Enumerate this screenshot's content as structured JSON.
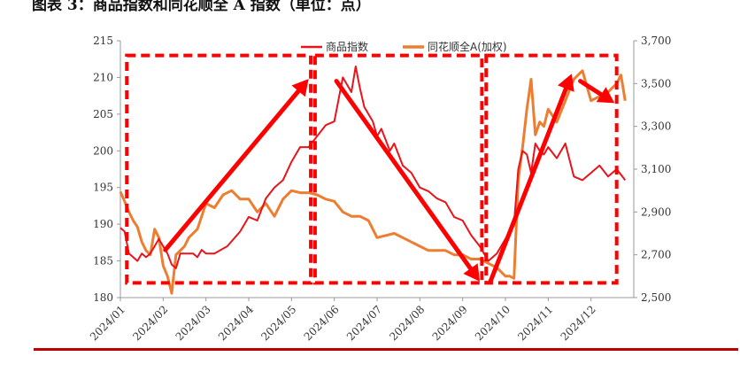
{
  "title": "图表 3：商品指数和同花顺全 A 指数（单位：点）",
  "colors": {
    "commodity": "#e8141c",
    "tonghuashun": "#ed7d31",
    "annotation": "#ff0000",
    "rule": "#c00000"
  },
  "chart_data": {
    "type": "line",
    "title": "图表 3：商品指数和同花顺全 A 指数（单位：点）",
    "x_tick_labels": [
      "2024/01",
      "2024/02",
      "2024/03",
      "2024/04",
      "2024/05",
      "2024/06",
      "2024/07",
      "2024/08",
      "2024/09",
      "2024/10",
      "2024/11",
      "2024/12"
    ],
    "x_range": [
      0,
      12
    ],
    "y_left": {
      "ticks": [
        "180",
        "185",
        "190",
        "195",
        "200",
        "205",
        "210",
        "215"
      ],
      "range": [
        180,
        215
      ]
    },
    "y_right": {
      "ticks": [
        "2,500",
        "2,700",
        "2,900",
        "3,100",
        "3,300",
        "3,500",
        "3,700"
      ],
      "range": [
        2500,
        3700
      ]
    },
    "legend": {
      "position": "top",
      "entries": [
        "商品指数",
        "同花顺全A(加权)"
      ]
    },
    "grid": false,
    "series": [
      {
        "name": "商品指数",
        "axis": "left",
        "x": [
          0,
          0.1,
          0.2,
          0.3,
          0.4,
          0.5,
          0.6,
          0.7,
          0.8,
          0.9,
          1.0,
          1.1,
          1.2,
          1.3,
          1.4,
          1.5,
          1.7,
          1.8,
          1.9,
          2.0,
          2.2,
          2.5,
          2.8,
          3.0,
          3.2,
          3.4,
          3.6,
          3.8,
          4.0,
          4.2,
          4.4,
          4.6,
          4.8,
          5.0,
          5.2,
          5.4,
          5.5,
          5.6,
          5.7,
          5.8,
          5.9,
          6.0,
          6.1,
          6.2,
          6.3,
          6.4,
          6.5,
          6.6,
          6.8,
          7.0,
          7.2,
          7.4,
          7.6,
          7.8,
          8.0,
          8.2,
          8.4,
          8.6,
          8.8,
          9.0,
          9.2,
          9.3,
          9.4,
          9.5,
          9.6,
          9.7,
          9.8,
          9.9,
          10.0,
          10.2,
          10.4,
          10.6,
          10.8,
          11.0,
          11.2,
          11.4,
          11.6,
          11.8
        ],
        "values": [
          189.5,
          189.0,
          186.0,
          185.5,
          185.0,
          186.0,
          185.5,
          186.0,
          187.0,
          188.0,
          187.0,
          186.0,
          184.5,
          184.0,
          186.0,
          186.0,
          186.0,
          185.5,
          186.5,
          186.0,
          186.0,
          187.0,
          189.0,
          191.0,
          190.5,
          193.5,
          195.0,
          196.0,
          198.5,
          200.5,
          200.5,
          202.0,
          203.5,
          204.0,
          210.0,
          208.0,
          211.5,
          208.5,
          206.0,
          205.0,
          204.0,
          202.0,
          203.0,
          201.5,
          200.0,
          201.0,
          199.5,
          198.0,
          197.0,
          195.0,
          194.5,
          193.5,
          193.0,
          191.0,
          190.5,
          188.5,
          187.0,
          185.0,
          186.0,
          188.0,
          190.0,
          197.5,
          200.0,
          199.5,
          197.0,
          201.0,
          200.0,
          199.5,
          200.5,
          199.0,
          201.0,
          196.5,
          196.0,
          197.0,
          198.0,
          196.5,
          197.5,
          196.0
        ]
      },
      {
        "name": "同花顺全A(加权)",
        "axis": "right",
        "x": [
          0,
          0.1,
          0.2,
          0.3,
          0.4,
          0.5,
          0.6,
          0.7,
          0.8,
          0.9,
          1.0,
          1.1,
          1.2,
          1.3,
          1.4,
          1.5,
          1.6,
          1.8,
          2.0,
          2.2,
          2.4,
          2.6,
          2.8,
          3.0,
          3.2,
          3.4,
          3.6,
          3.8,
          4.0,
          4.2,
          4.4,
          4.6,
          4.8,
          5.0,
          5.2,
          5.4,
          5.6,
          5.8,
          6.0,
          6.2,
          6.4,
          6.6,
          6.8,
          7.0,
          7.2,
          7.4,
          7.6,
          7.8,
          8.0,
          8.2,
          8.4,
          8.6,
          8.8,
          9.0,
          9.1,
          9.2,
          9.3,
          9.4,
          9.5,
          9.6,
          9.7,
          9.8,
          9.9,
          10.0,
          10.2,
          10.4,
          10.6,
          10.8,
          11.0,
          11.2,
          11.4,
          11.6,
          11.7,
          11.8
        ],
        "values": [
          2995,
          2950,
          2900,
          2860,
          2830,
          2760,
          2720,
          2700,
          2820,
          2780,
          2650,
          2600,
          2520,
          2700,
          2720,
          2740,
          2780,
          2820,
          2940,
          2920,
          2980,
          3000,
          2960,
          2960,
          2900,
          2940,
          2880,
          2960,
          3000,
          2990,
          2990,
          2980,
          2960,
          2950,
          2900,
          2880,
          2880,
          2860,
          2780,
          2790,
          2800,
          2780,
          2760,
          2740,
          2720,
          2720,
          2720,
          2700,
          2700,
          2680,
          2680,
          2660,
          2640,
          2600,
          2600,
          2590,
          3050,
          3200,
          3380,
          3520,
          3260,
          3320,
          3300,
          3380,
          3320,
          3420,
          3520,
          3560,
          3420,
          3440,
          3460,
          3500,
          3540,
          3420
        ]
      }
    ]
  }
}
